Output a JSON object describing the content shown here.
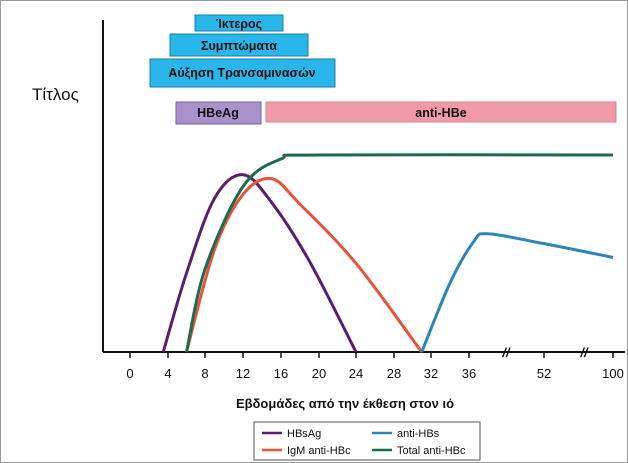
{
  "chart_data": {
    "type": "line",
    "ylabel": "Τίτλος",
    "xlabel": "Εβδομάδες από την έκθεση στον ιό",
    "x_ticks": [
      "0",
      "4",
      "8",
      "12",
      "16",
      "20",
      "24",
      "28",
      "32",
      "36",
      "52",
      "100"
    ],
    "axis_breaks": [
      "//",
      "//"
    ],
    "grid": false,
    "legend_position": "bottom-center",
    "symptom_bars": [
      {
        "label": "Ίκτερος",
        "color": "#29b6e8"
      },
      {
        "label": "Συμπτώματα",
        "color": "#29b6e8"
      },
      {
        "label": "Αύξηση Τρανσαμινασών",
        "color": "#29b6e8"
      }
    ],
    "marker_bars": [
      {
        "label": "HBeAg",
        "color": "#9b7fc4",
        "x_start": 5,
        "x_end": 14
      },
      {
        "label": "anti-HBe",
        "color": "#f08a9a",
        "x_start": 14,
        "x_end": 100
      }
    ],
    "series": [
      {
        "name": "HBsAg",
        "color": "#5a1e6e",
        "points": [
          [
            3.5,
            0
          ],
          [
            6,
            40
          ],
          [
            9,
            78
          ],
          [
            12,
            90
          ],
          [
            15,
            76
          ],
          [
            19,
            46
          ],
          [
            24,
            0
          ]
        ]
      },
      {
        "name": "IgM anti-HBc",
        "color": "#e8533a",
        "points": [
          [
            6,
            0
          ],
          [
            9,
            52
          ],
          [
            12,
            80
          ],
          [
            15,
            88
          ],
          [
            18,
            75
          ],
          [
            24,
            45
          ],
          [
            31,
            0
          ]
        ]
      },
      {
        "name": "anti-HBs",
        "color": "#2a86b8",
        "points": [
          [
            31,
            0
          ],
          [
            34,
            35
          ],
          [
            37,
            56
          ],
          [
            40,
            60
          ],
          [
            52,
            55
          ],
          [
            100,
            48
          ]
        ]
      },
      {
        "name": "Total anti-HBc",
        "color": "#1d6b4f",
        "points": [
          [
            6,
            0
          ],
          [
            8,
            42
          ],
          [
            12,
            84
          ],
          [
            16,
            98
          ],
          [
            20,
            100
          ],
          [
            100,
            100
          ]
        ]
      }
    ]
  }
}
